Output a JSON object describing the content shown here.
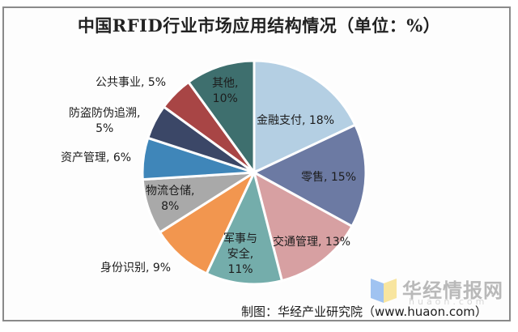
{
  "chart_data": {
    "type": "pie",
    "title": "中国RFID行业市场应用结构情况（单位：%）",
    "unit": "%",
    "categories": [
      "金融支付",
      "零售",
      "交通管理",
      "军事与安全",
      "身份识别",
      "物流仓储",
      "资产管理",
      "防盗防伪追溯",
      "公共事业",
      "其他"
    ],
    "values": [
      18,
      15,
      13,
      11,
      9,
      8,
      6,
      5,
      5,
      10
    ],
    "colors": [
      "#b4cfe3",
      "#6c7aa3",
      "#d7a0a2",
      "#74adab",
      "#f2964f",
      "#a9a9a9",
      "#3f86b9",
      "#3b4767",
      "#a84545",
      "#3e6f6e"
    ],
    "start_angle": "12 o'clock, clockwise",
    "legend": "none (data labels on/near slices)"
  },
  "labels": {
    "finance": {
      "line1": "金融支付, 18%"
    },
    "retail": {
      "line1": "零售, 15%"
    },
    "traffic": {
      "line1": "交通管理, 13%"
    },
    "military": {
      "line1": "军事与",
      "line2": "安全,",
      "line3": "11%"
    },
    "identity": {
      "line1": "身份识别, 9%"
    },
    "logistics": {
      "line1": "物流仓储,",
      "line2": "8%"
    },
    "assets": {
      "line1": "资产管理, 6%"
    },
    "antitheft": {
      "line1": "防盗防伪追溯,",
      "line2": "5%"
    },
    "public": {
      "line1": "公共事业, 5%"
    },
    "other": {
      "line1": "其他,",
      "line2": "10%"
    }
  },
  "footer": {
    "source": "制图：华经产业研究院（www.huaon.com）",
    "watermark": "华经情报网",
    "watermark_sub": "huaon.com"
  }
}
